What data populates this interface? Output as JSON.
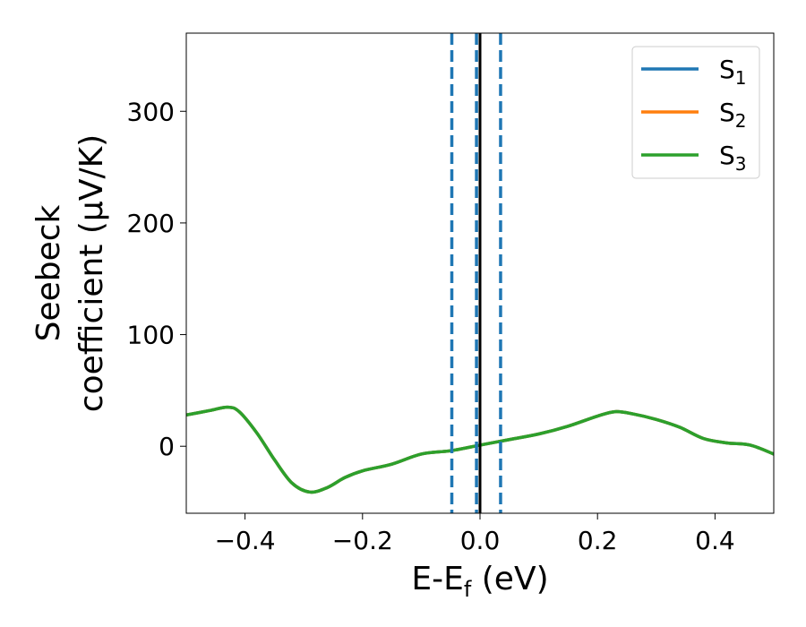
{
  "chart_data": {
    "type": "line",
    "title": "",
    "xlabel": "E-E",
    "xlabel_sub": "f",
    "xlabel_suffix": " (eV)",
    "ylabel_line1": "Seebeck",
    "ylabel_line2": "coefficient  (μV/K)",
    "xlim": [
      -0.5,
      0.5
    ],
    "ylim": [
      -60,
      370
    ],
    "xticks": [
      -0.4,
      -0.2,
      0.0,
      0.2,
      0.4
    ],
    "xtick_labels": [
      "−0.4",
      "−0.2",
      "0.0",
      "0.2",
      "0.4"
    ],
    "yticks": [
      0,
      100,
      200,
      300
    ],
    "ytick_labels": [
      "0",
      "100",
      "200",
      "300"
    ],
    "grid": false,
    "legend_position": "top-right",
    "series": [
      {
        "name": "S",
        "name_sub": "1",
        "color": "#1f77b4",
        "points": [
          [
            -0.5,
            28
          ],
          [
            -0.46,
            32
          ],
          [
            -0.43,
            35
          ],
          [
            -0.41,
            31
          ],
          [
            -0.38,
            12
          ],
          [
            -0.35,
            -12
          ],
          [
            -0.32,
            -33
          ],
          [
            -0.29,
            -41
          ],
          [
            -0.26,
            -37
          ],
          [
            -0.23,
            -28
          ],
          [
            -0.2,
            -22
          ],
          [
            -0.15,
            -16
          ],
          [
            -0.1,
            -7
          ],
          [
            -0.05,
            -4
          ],
          [
            0.0,
            1
          ],
          [
            0.05,
            6
          ],
          [
            0.1,
            11
          ],
          [
            0.15,
            18
          ],
          [
            0.2,
            27
          ],
          [
            0.23,
            31
          ],
          [
            0.26,
            29
          ],
          [
            0.3,
            24
          ],
          [
            0.34,
            17
          ],
          [
            0.38,
            7
          ],
          [
            0.42,
            3
          ],
          [
            0.46,
            1
          ],
          [
            0.5,
            -7
          ]
        ]
      },
      {
        "name": "S",
        "name_sub": "2",
        "color": "#ff7f0e",
        "points": [
          [
            -0.5,
            28
          ],
          [
            -0.46,
            32
          ],
          [
            -0.43,
            35
          ],
          [
            -0.41,
            31
          ],
          [
            -0.38,
            12
          ],
          [
            -0.35,
            -12
          ],
          [
            -0.32,
            -33
          ],
          [
            -0.29,
            -41
          ],
          [
            -0.26,
            -37
          ],
          [
            -0.23,
            -28
          ],
          [
            -0.2,
            -22
          ],
          [
            -0.15,
            -16
          ],
          [
            -0.1,
            -7
          ],
          [
            -0.05,
            -4
          ],
          [
            0.0,
            1
          ],
          [
            0.05,
            6
          ],
          [
            0.1,
            11
          ],
          [
            0.15,
            18
          ],
          [
            0.2,
            27
          ],
          [
            0.23,
            31
          ],
          [
            0.26,
            29
          ],
          [
            0.3,
            24
          ],
          [
            0.34,
            17
          ],
          [
            0.38,
            7
          ],
          [
            0.42,
            3
          ],
          [
            0.46,
            1
          ],
          [
            0.5,
            -7
          ]
        ]
      },
      {
        "name": "S",
        "name_sub": "3",
        "color": "#2ca02c",
        "points": [
          [
            -0.5,
            28
          ],
          [
            -0.46,
            32
          ],
          [
            -0.43,
            35
          ],
          [
            -0.41,
            31
          ],
          [
            -0.38,
            12
          ],
          [
            -0.35,
            -12
          ],
          [
            -0.32,
            -33
          ],
          [
            -0.29,
            -41
          ],
          [
            -0.26,
            -37
          ],
          [
            -0.23,
            -28
          ],
          [
            -0.2,
            -22
          ],
          [
            -0.15,
            -16
          ],
          [
            -0.1,
            -7
          ],
          [
            -0.05,
            -4
          ],
          [
            0.0,
            1
          ],
          [
            0.05,
            6
          ],
          [
            0.1,
            11
          ],
          [
            0.15,
            18
          ],
          [
            0.2,
            27
          ],
          [
            0.23,
            31
          ],
          [
            0.26,
            29
          ],
          [
            0.3,
            24
          ],
          [
            0.34,
            17
          ],
          [
            0.38,
            7
          ],
          [
            0.42,
            3
          ],
          [
            0.46,
            1
          ],
          [
            0.5,
            -7
          ]
        ]
      }
    ],
    "vertical_lines": [
      {
        "x": -0.048,
        "style": "dashed",
        "color": "#1f77b4"
      },
      {
        "x": -0.006,
        "style": "dashed",
        "color": "#1f77b4"
      },
      {
        "x": 0.035,
        "style": "dashed",
        "color": "#1f77b4"
      },
      {
        "x": 0.0,
        "style": "solid",
        "color": "#000000"
      }
    ]
  }
}
